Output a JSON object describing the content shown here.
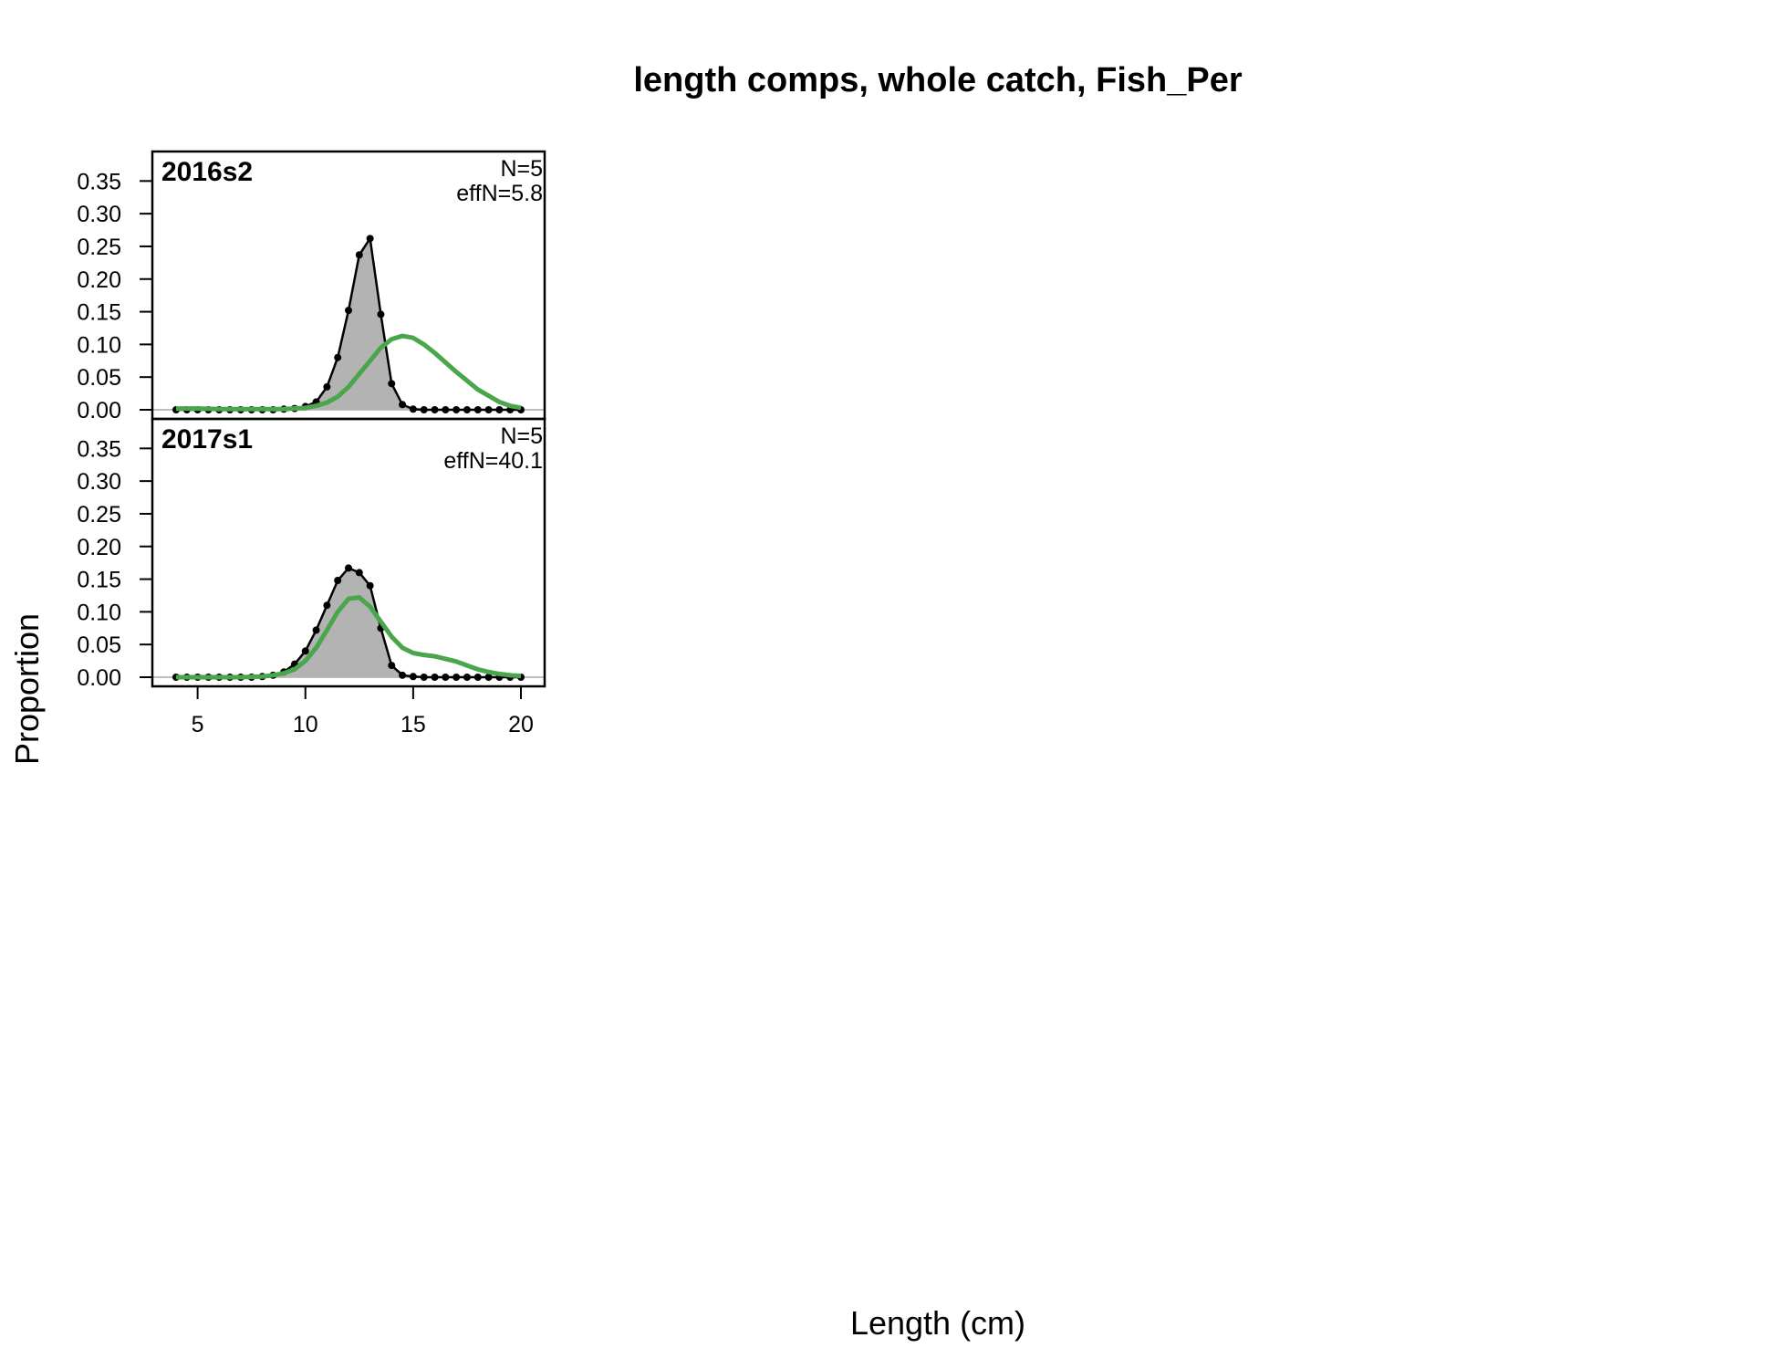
{
  "chart_data": {
    "type": "area",
    "title": "length comps, whole catch, Fish_Per",
    "xlabel": "Length (cm)",
    "ylabel": "Proportion",
    "xlim": [
      2.9,
      21.1
    ],
    "ylim": [
      0,
      0.37
    ],
    "x_ticks": [
      5,
      10,
      15,
      20
    ],
    "y_ticks": [
      0.0,
      0.05,
      0.1,
      0.15,
      0.2,
      0.25,
      0.3,
      0.35
    ],
    "y_tick_labels": [
      "0.00",
      "0.05",
      "0.10",
      "0.15",
      "0.20",
      "0.25",
      "0.30",
      "0.35"
    ],
    "grid": false,
    "observed_color": "#000000",
    "observed_fill": "#b3b3b3",
    "expected_color": "#4aa64a",
    "zero_line_color": "#bebebe",
    "panels": [
      {
        "label": "2016s2",
        "n_text": "N=5",
        "effn_text": "effN=5.8",
        "observed": {
          "x": [
            4,
            4.5,
            5,
            5.5,
            6,
            6.5,
            7,
            7.5,
            8,
            8.5,
            9,
            9.5,
            10,
            10.5,
            11,
            11.5,
            12,
            12.5,
            13,
            13.5,
            14,
            14.5,
            15,
            15.5,
            16,
            16.5,
            17,
            17.5,
            18,
            18.5,
            19,
            19.5,
            20
          ],
          "y": [
            0,
            0,
            0,
            0,
            0,
            0,
            0,
            0,
            0,
            0,
            0.001,
            0.002,
            0.005,
            0.012,
            0.035,
            0.08,
            0.152,
            0.237,
            0.262,
            0.146,
            0.04,
            0.008,
            0.001,
            0,
            0,
            0,
            0,
            0,
            0,
            0,
            0,
            0,
            0
          ]
        },
        "expected": {
          "x": [
            4,
            5,
            6,
            7,
            8,
            9,
            10,
            10.5,
            11,
            11.5,
            12,
            12.5,
            13,
            13.5,
            14,
            14.5,
            15,
            15.5,
            16,
            17,
            18,
            19,
            19.5,
            20
          ],
          "y": [
            0.002,
            0.002,
            0.001,
            0.001,
            0.001,
            0.001,
            0.003,
            0.006,
            0.011,
            0.02,
            0.035,
            0.055,
            0.075,
            0.095,
            0.108,
            0.113,
            0.11,
            0.1,
            0.087,
            0.058,
            0.031,
            0.012,
            0.006,
            0.003
          ]
        }
      },
      {
        "label": "2017s1",
        "n_text": "N=5",
        "effn_text": "effN=40.1",
        "observed": {
          "x": [
            4,
            4.5,
            5,
            5.5,
            6,
            6.5,
            7,
            7.5,
            8,
            8.5,
            9,
            9.5,
            10,
            10.5,
            11,
            11.5,
            12,
            12.5,
            13,
            13.5,
            14,
            14.5,
            15,
            15.5,
            16,
            16.5,
            17,
            17.5,
            18,
            18.5,
            19,
            19.5,
            20
          ],
          "y": [
            0,
            0,
            0,
            0,
            0,
            0,
            0,
            0,
            0.001,
            0.003,
            0.008,
            0.02,
            0.04,
            0.072,
            0.11,
            0.148,
            0.167,
            0.16,
            0.14,
            0.075,
            0.018,
            0.003,
            0.001,
            0,
            0,
            0,
            0,
            0,
            0,
            0,
            0,
            0,
            0
          ]
        },
        "expected": {
          "x": [
            4,
            5,
            6,
            7,
            8,
            8.5,
            9,
            9.5,
            10,
            10.5,
            11,
            11.5,
            12,
            12.5,
            13,
            13.5,
            14,
            14.5,
            15,
            15.5,
            16,
            16.5,
            17,
            17.5,
            18,
            18.5,
            19,
            19.5,
            20
          ],
          "y": [
            0,
            0,
            0,
            0,
            0.001,
            0.003,
            0.006,
            0.012,
            0.025,
            0.045,
            0.072,
            0.1,
            0.12,
            0.122,
            0.108,
            0.085,
            0.062,
            0.045,
            0.037,
            0.034,
            0.032,
            0.028,
            0.024,
            0.018,
            0.012,
            0.008,
            0.005,
            0.003,
            0.002
          ]
        }
      }
    ]
  }
}
